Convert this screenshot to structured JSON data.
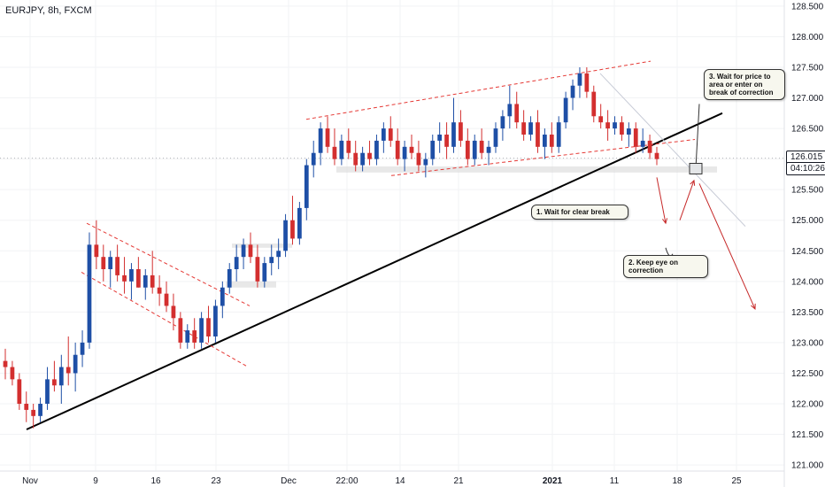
{
  "header": {
    "symbol": "EURJPY, 8h, FXCM"
  },
  "colors": {
    "bull": "#1e4fa6",
    "bear": "#d32f2f",
    "trend": "#000000",
    "channel": "#e53935",
    "zone": "#d8d8d8",
    "projection": "#c62828"
  },
  "chart_data": {
    "type": "candlestick",
    "title": "EURJPY, 8h, FXCM",
    "ylim": [
      120.9,
      128.6
    ],
    "y_ticks": [
      "128.500",
      "128.000",
      "127.500",
      "127.000",
      "126.500",
      "126.000",
      "125.500",
      "125.000",
      "124.500",
      "124.000",
      "123.500",
      "123.000",
      "122.500",
      "122.000",
      "121.500",
      "121.000"
    ],
    "x_ticks": [
      "Nov",
      "9",
      "16",
      "23",
      "Dec",
      "22:00",
      "14",
      "21",
      "2021",
      "11",
      "18",
      "25"
    ],
    "last_price": "126.015",
    "countdown": "04:10:26",
    "candles": [
      [
        122.7,
        122.9,
        122.4,
        122.6
      ],
      [
        122.6,
        122.7,
        122.3,
        122.4
      ],
      [
        122.4,
        122.5,
        121.9,
        122.0
      ],
      [
        122.0,
        122.2,
        121.7,
        121.9
      ],
      [
        121.9,
        122.0,
        121.6,
        121.8
      ],
      [
        121.8,
        122.1,
        121.7,
        122.0
      ],
      [
        122.0,
        122.6,
        121.9,
        122.4
      ],
      [
        122.4,
        122.7,
        122.2,
        122.3
      ],
      [
        122.3,
        122.8,
        122.0,
        122.6
      ],
      [
        122.6,
        123.1,
        122.3,
        122.5
      ],
      [
        122.5,
        123.0,
        122.2,
        122.8
      ],
      [
        122.8,
        123.2,
        122.6,
        123.0
      ],
      [
        123.0,
        124.8,
        122.9,
        124.6
      ],
      [
        124.6,
        125.0,
        124.2,
        124.4
      ],
      [
        124.4,
        124.6,
        124.0,
        124.2
      ],
      [
        124.2,
        124.5,
        123.9,
        124.4
      ],
      [
        124.4,
        124.6,
        124.0,
        124.1
      ],
      [
        124.1,
        124.4,
        123.8,
        124.0
      ],
      [
        124.0,
        124.3,
        123.7,
        124.2
      ],
      [
        124.2,
        124.4,
        123.9,
        123.9
      ],
      [
        123.9,
        124.2,
        123.7,
        124.1
      ],
      [
        124.1,
        124.5,
        123.8,
        123.9
      ],
      [
        123.9,
        124.1,
        123.6,
        123.8
      ],
      [
        123.8,
        124.0,
        123.5,
        123.6
      ],
      [
        123.6,
        123.8,
        123.2,
        123.4
      ],
      [
        123.4,
        123.5,
        122.9,
        123.0
      ],
      [
        123.0,
        123.3,
        122.9,
        123.2
      ],
      [
        123.2,
        123.4,
        122.9,
        123.0
      ],
      [
        123.0,
        123.5,
        122.9,
        123.4
      ],
      [
        123.4,
        123.6,
        123.0,
        123.1
      ],
      [
        123.1,
        123.7,
        123.0,
        123.6
      ],
      [
        123.6,
        124.0,
        123.4,
        123.9
      ],
      [
        123.9,
        124.3,
        123.8,
        124.2
      ],
      [
        124.2,
        124.6,
        124.0,
        124.4
      ],
      [
        124.4,
        124.7,
        124.2,
        124.6
      ],
      [
        124.6,
        124.8,
        124.3,
        124.4
      ],
      [
        124.4,
        124.6,
        123.9,
        124.0
      ],
      [
        124.0,
        124.4,
        123.9,
        124.3
      ],
      [
        124.3,
        124.6,
        124.1,
        124.4
      ],
      [
        124.4,
        124.7,
        124.2,
        124.5
      ],
      [
        124.5,
        125.1,
        124.4,
        125.0
      ],
      [
        125.0,
        125.4,
        124.6,
        124.7
      ],
      [
        124.7,
        125.3,
        124.6,
        125.2
      ],
      [
        125.2,
        126.0,
        125.0,
        125.9
      ],
      [
        125.9,
        126.3,
        125.7,
        126.1
      ],
      [
        126.1,
        126.6,
        125.9,
        126.5
      ],
      [
        126.5,
        126.7,
        126.1,
        126.2
      ],
      [
        126.2,
        126.5,
        125.9,
        126.0
      ],
      [
        126.0,
        126.4,
        125.9,
        126.3
      ],
      [
        126.3,
        126.5,
        126.0,
        126.1
      ],
      [
        126.1,
        126.3,
        125.8,
        125.9
      ],
      [
        125.9,
        126.2,
        125.8,
        126.1
      ],
      [
        126.1,
        126.3,
        125.9,
        126.0
      ],
      [
        126.0,
        126.4,
        125.9,
        126.3
      ],
      [
        126.3,
        126.6,
        126.1,
        126.5
      ],
      [
        126.5,
        126.7,
        126.2,
        126.3
      ],
      [
        126.3,
        126.5,
        125.9,
        126.0
      ],
      [
        126.0,
        126.3,
        125.8,
        126.2
      ],
      [
        126.2,
        126.4,
        126.0,
        126.1
      ],
      [
        126.1,
        126.3,
        125.8,
        125.9
      ],
      [
        125.9,
        126.1,
        125.7,
        126.0
      ],
      [
        126.0,
        126.4,
        125.9,
        126.3
      ],
      [
        126.3,
        126.6,
        126.1,
        126.4
      ],
      [
        126.4,
        126.6,
        126.0,
        126.2
      ],
      [
        126.2,
        127.0,
        126.1,
        126.6
      ],
      [
        126.6,
        126.8,
        126.2,
        126.3
      ],
      [
        126.3,
        126.5,
        125.9,
        126.0
      ],
      [
        126.0,
        126.4,
        125.9,
        126.3
      ],
      [
        126.3,
        126.5,
        126.0,
        126.1
      ],
      [
        126.1,
        126.3,
        125.9,
        126.2
      ],
      [
        126.2,
        126.6,
        126.1,
        126.5
      ],
      [
        126.5,
        126.8,
        126.3,
        126.7
      ],
      [
        126.7,
        127.2,
        126.5,
        126.9
      ],
      [
        126.9,
        127.1,
        126.5,
        126.6
      ],
      [
        126.6,
        126.8,
        126.3,
        126.4
      ],
      [
        126.4,
        126.7,
        126.3,
        126.6
      ],
      [
        126.6,
        126.8,
        126.1,
        126.2
      ],
      [
        126.2,
        126.5,
        126.0,
        126.4
      ],
      [
        126.4,
        126.6,
        126.1,
        126.2
      ],
      [
        126.2,
        126.7,
        126.1,
        126.6
      ],
      [
        126.6,
        127.1,
        126.5,
        127.0
      ],
      [
        127.0,
        127.3,
        126.8,
        127.2
      ],
      [
        127.2,
        127.5,
        127.0,
        127.4
      ],
      [
        127.4,
        127.5,
        127.0,
        127.1
      ],
      [
        127.1,
        127.2,
        126.6,
        126.7
      ],
      [
        126.7,
        126.9,
        126.5,
        126.6
      ],
      [
        126.6,
        126.8,
        126.3,
        126.5
      ],
      [
        126.5,
        126.7,
        126.4,
        126.6
      ],
      [
        126.6,
        126.7,
        126.3,
        126.4
      ],
      [
        126.4,
        126.6,
        126.2,
        126.5
      ],
      [
        126.5,
        126.6,
        126.1,
        126.2
      ],
      [
        126.2,
        126.5,
        126.1,
        126.3
      ],
      [
        126.3,
        126.4,
        126.0,
        126.1
      ],
      [
        126.1,
        126.2,
        125.9,
        126.0
      ]
    ],
    "annotations": [
      {
        "text": "1. Wait for clear break"
      },
      {
        "text": "2. Keep eye on correction"
      },
      {
        "text": "3. Wait for price to  area or enter on break of correction"
      }
    ]
  }
}
